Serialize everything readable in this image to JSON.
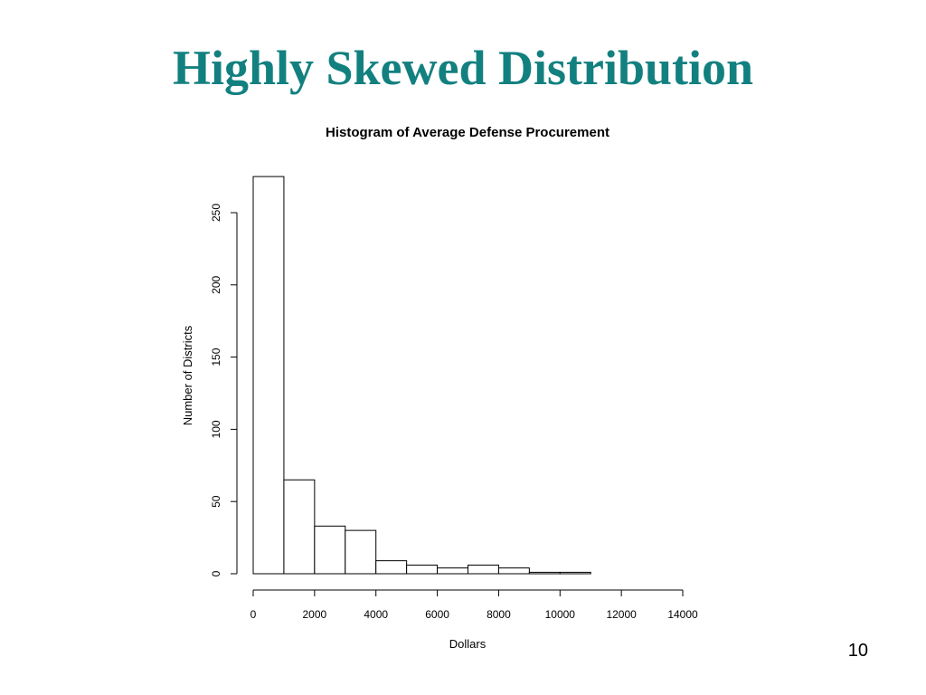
{
  "slide": {
    "title": "Highly Skewed Distribution",
    "number": "10"
  },
  "chart_data": {
    "type": "bar",
    "title": "Histogram of Average Defense Procurement",
    "xlabel": "Dollars",
    "ylabel": "Number of Districts",
    "bin_width": 1000,
    "bin_starts": [
      0,
      1000,
      2000,
      3000,
      4000,
      5000,
      6000,
      7000,
      8000,
      9000,
      10000,
      11000,
      12000
    ],
    "values": [
      275,
      65,
      33,
      30,
      9,
      6,
      4,
      6,
      4,
      1,
      1,
      0,
      0
    ],
    "xlim": [
      0,
      14000
    ],
    "ylim": [
      0,
      250
    ],
    "x_ticks": [
      0,
      2000,
      4000,
      6000,
      8000,
      10000,
      12000,
      14000
    ],
    "y_ticks": [
      0,
      50,
      100,
      150,
      200,
      250
    ],
    "grid": false,
    "bar_fill": "#ffffff",
    "bar_stroke": "#000000"
  }
}
